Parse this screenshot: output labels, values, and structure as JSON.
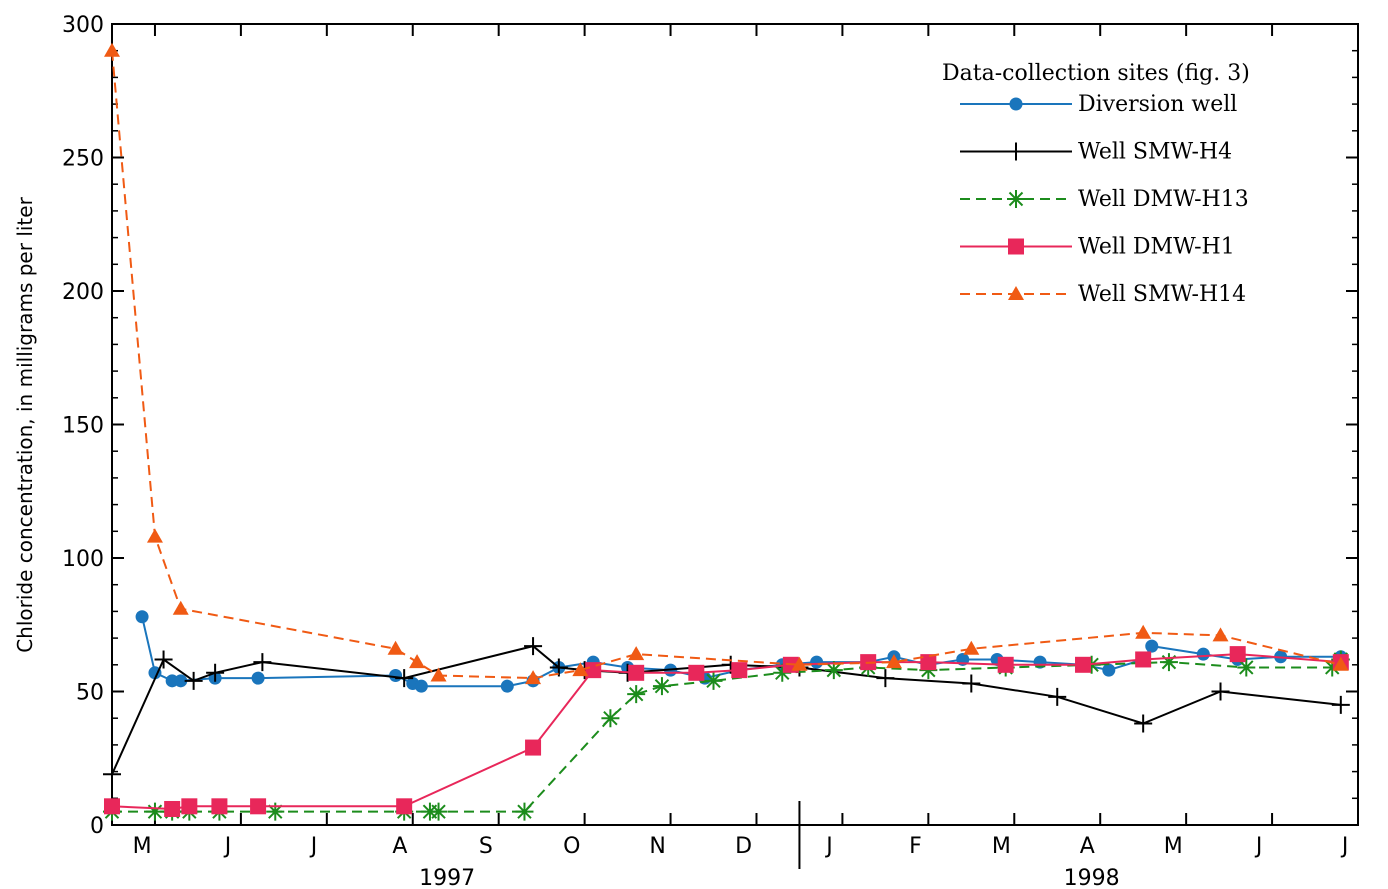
{
  "chart_data": {
    "type": "line",
    "ylabel": "Chloride concentration, in milligrams per liter",
    "ylim": [
      0,
      300
    ],
    "yticks": [
      0,
      50,
      100,
      150,
      200,
      250,
      300
    ],
    "xlim": [
      0,
      14.5
    ],
    "month_labels": [
      "M",
      "J",
      "J",
      "A",
      "S",
      "O",
      "N",
      "D",
      "J",
      "F",
      "M",
      "A",
      "M",
      "J",
      "J"
    ],
    "year_labels": [
      {
        "label": "1997",
        "x": 3.9
      },
      {
        "label": "1998",
        "x": 11.4
      }
    ],
    "year_divider_x": 8,
    "grid": false,
    "legend": {
      "title": "Data-collection sites (fig. 3)",
      "position": "top-right"
    },
    "series": [
      {
        "name": "Diversion well",
        "color": "#1a75bc",
        "dash": "solid",
        "marker": "circle",
        "points": [
          [
            0.35,
            78
          ],
          [
            0.5,
            57
          ],
          [
            0.7,
            54
          ],
          [
            0.8,
            54
          ],
          [
            1.2,
            55
          ],
          [
            1.7,
            55
          ],
          [
            3.3,
            56
          ],
          [
            3.5,
            53
          ],
          [
            3.6,
            52
          ],
          [
            4.6,
            52
          ],
          [
            4.9,
            54
          ],
          [
            5.2,
            59
          ],
          [
            5.6,
            61
          ],
          [
            6.0,
            59
          ],
          [
            6.5,
            58
          ],
          [
            6.9,
            55
          ],
          [
            7.3,
            58
          ],
          [
            7.8,
            60
          ],
          [
            8.2,
            61
          ],
          [
            8.8,
            61
          ],
          [
            9.1,
            63
          ],
          [
            9.5,
            60
          ],
          [
            9.9,
            62
          ],
          [
            10.3,
            62
          ],
          [
            10.8,
            61
          ],
          [
            11.3,
            60
          ],
          [
            11.6,
            58
          ],
          [
            12.0,
            62
          ],
          [
            12.1,
            67
          ],
          [
            12.7,
            64
          ],
          [
            13.1,
            62
          ],
          [
            13.6,
            63
          ],
          [
            14.3,
            63
          ]
        ]
      },
      {
        "name": "Well SMW-H4",
        "color": "#000000",
        "dash": "solid",
        "marker": "plus",
        "points": [
          [
            0,
            19
          ],
          [
            0.6,
            62
          ],
          [
            0.95,
            54
          ],
          [
            1.2,
            57
          ],
          [
            1.75,
            61
          ],
          [
            3.4,
            55
          ],
          [
            4.9,
            67
          ],
          [
            5.2,
            59
          ],
          [
            5.5,
            58
          ],
          [
            6.0,
            57
          ],
          [
            7.2,
            60
          ],
          [
            8.0,
            59
          ],
          [
            9.0,
            55
          ],
          [
            10.0,
            53
          ],
          [
            11.0,
            48
          ],
          [
            12.0,
            38
          ],
          [
            12.9,
            50
          ],
          [
            14.3,
            45
          ]
        ]
      },
      {
        "name": "Well DMW-H13",
        "color": "#1c8c1c",
        "dash": "dash",
        "marker": "asterisk",
        "points": [
          [
            0,
            5
          ],
          [
            0.5,
            5
          ],
          [
            0.7,
            5
          ],
          [
            0.9,
            5
          ],
          [
            1.25,
            5
          ],
          [
            1.9,
            5
          ],
          [
            3.4,
            5
          ],
          [
            3.7,
            5
          ],
          [
            3.8,
            5
          ],
          [
            4.8,
            5
          ],
          [
            5.8,
            40
          ],
          [
            6.1,
            49
          ],
          [
            6.4,
            52
          ],
          [
            7.0,
            54
          ],
          [
            7.8,
            57
          ],
          [
            8.4,
            58
          ],
          [
            8.8,
            59
          ],
          [
            9.5,
            58
          ],
          [
            10.4,
            59
          ],
          [
            11.4,
            60
          ],
          [
            12.3,
            61
          ],
          [
            13.2,
            59
          ],
          [
            14.2,
            59
          ],
          [
            14.3,
            62
          ]
        ]
      },
      {
        "name": "Well DMW-H1",
        "color": "#e8275a",
        "dash": "solid",
        "marker": "square",
        "points": [
          [
            0,
            7
          ],
          [
            0.7,
            6
          ],
          [
            0.9,
            7
          ],
          [
            1.25,
            7
          ],
          [
            1.7,
            7
          ],
          [
            3.4,
            7
          ],
          [
            4.9,
            29
          ],
          [
            5.6,
            58
          ],
          [
            6.1,
            57
          ],
          [
            6.8,
            57
          ],
          [
            7.3,
            58
          ],
          [
            7.9,
            60
          ],
          [
            8.8,
            61
          ],
          [
            9.5,
            61
          ],
          [
            10.4,
            60
          ],
          [
            11.3,
            60
          ],
          [
            12.0,
            62
          ],
          [
            13.1,
            64
          ],
          [
            14.3,
            61
          ]
        ]
      },
      {
        "name": "Well SMW-H14",
        "color": "#f05a14",
        "dash": "dash",
        "marker": "triangle",
        "points": [
          [
            0,
            290
          ],
          [
            0.5,
            108
          ],
          [
            0.8,
            81
          ],
          [
            3.3,
            66
          ],
          [
            3.55,
            61
          ],
          [
            3.8,
            56
          ],
          [
            4.9,
            55
          ],
          [
            5.45,
            58
          ],
          [
            6.1,
            64
          ],
          [
            8.0,
            60
          ],
          [
            9.1,
            61
          ],
          [
            10.0,
            66
          ],
          [
            12.0,
            72
          ],
          [
            12.9,
            71
          ],
          [
            14.3,
            60
          ]
        ]
      }
    ]
  }
}
